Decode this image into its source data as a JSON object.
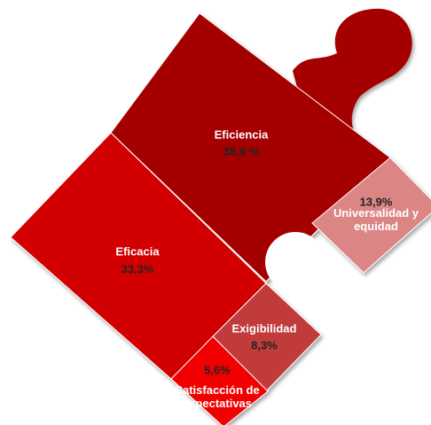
{
  "chart_data": {
    "type": "puzzle",
    "categories": [
      "Eficiencia",
      "Eficacia",
      "Universalidad y equidad",
      "Exigibilidad",
      "Satisfacción de expectativas"
    ],
    "values": [
      38.9,
      33.3,
      13.9,
      8.3,
      5.6
    ],
    "value_labels": [
      "38,9 %",
      "33,3%",
      "13,9%",
      "8,3%",
      "5,6%"
    ],
    "colors": [
      "#a50000",
      "#d20000",
      "#dc8585",
      "#c13a3a",
      "#f00000"
    ]
  }
}
